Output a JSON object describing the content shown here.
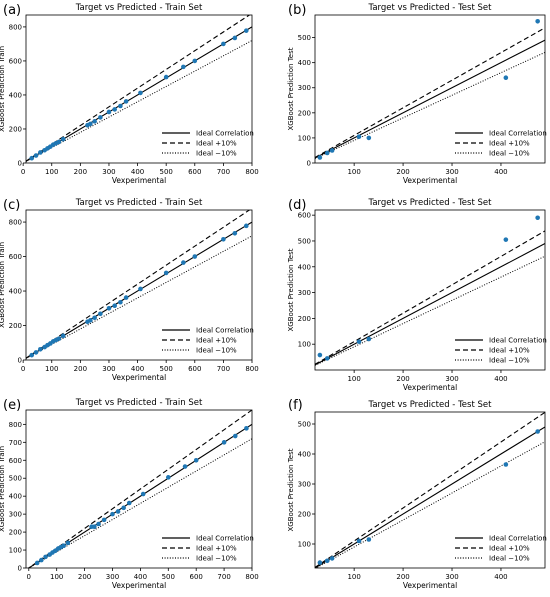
{
  "chart_data": [
    {
      "panel_label": "(a)",
      "type": "scatter",
      "title": "Target vs Predicted - Train Set",
      "xlabel": "Vexperimental",
      "ylabel": "XGBoost Prediction Train",
      "xlim": [
        10,
        800
      ],
      "ylim": [
        0,
        870
      ],
      "xticks": [
        0,
        100,
        200,
        300,
        400,
        500,
        600,
        700,
        800
      ],
      "yticks": [
        0,
        200,
        400,
        600,
        800
      ],
      "series": [
        {
          "points": [
            [
              30,
              28
            ],
            [
              45,
              44
            ],
            [
              60,
              62
            ],
            [
              75,
              75
            ],
            [
              85,
              86
            ],
            [
              95,
              96
            ],
            [
              105,
              108
            ],
            [
              115,
              116
            ],
            [
              125,
              124
            ],
            [
              140,
              140
            ],
            [
              225,
              222
            ],
            [
              235,
              230
            ],
            [
              250,
              245
            ],
            [
              270,
              268
            ],
            [
              300,
              300
            ],
            [
              320,
              315
            ],
            [
              340,
              335
            ],
            [
              360,
              362
            ],
            [
              410,
              412
            ],
            [
              500,
              505
            ],
            [
              560,
              565
            ],
            [
              600,
              600
            ],
            [
              700,
              700
            ],
            [
              740,
              735
            ],
            [
              780,
              778
            ]
          ]
        }
      ],
      "legend": {
        "position": "lower-right",
        "entries": [
          "Ideal Correlation",
          "Ideal +10%",
          "Ideal −10%"
        ]
      }
    },
    {
      "panel_label": "(b)",
      "type": "scatter",
      "title": "Target vs Predicted - Test Set",
      "xlabel": "Vexperimental",
      "ylabel": "XGBoost Prediction Test",
      "xlim": [
        20,
        490
      ],
      "ylim": [
        0,
        590
      ],
      "xticks": [
        100,
        200,
        300,
        400
      ],
      "yticks": [
        0,
        100,
        200,
        300,
        400,
        500
      ],
      "series": [
        {
          "points": [
            [
              30,
              22
            ],
            [
              45,
              40
            ],
            [
              55,
              50
            ],
            [
              110,
              105
            ],
            [
              130,
              100
            ],
            [
              410,
              340
            ],
            [
              475,
              565
            ]
          ]
        }
      ],
      "legend": {
        "position": "lower-right",
        "entries": [
          "Ideal Correlation",
          "Ideal +10%",
          "Ideal −10%"
        ]
      }
    },
    {
      "panel_label": "(c)",
      "type": "scatter",
      "title": "Target vs Predicted - Train Set",
      "xlabel": "Vexperimental",
      "ylabel": "XGBoost Prediction Train",
      "xlim": [
        10,
        800
      ],
      "ylim": [
        0,
        870
      ],
      "xticks": [
        0,
        100,
        200,
        300,
        400,
        500,
        600,
        700,
        800
      ],
      "yticks": [
        0,
        200,
        400,
        600,
        800
      ],
      "series": [
        {
          "points": [
            [
              30,
              28
            ],
            [
              45,
              44
            ],
            [
              60,
              62
            ],
            [
              75,
              75
            ],
            [
              85,
              86
            ],
            [
              95,
              96
            ],
            [
              105,
              108
            ],
            [
              115,
              116
            ],
            [
              125,
              124
            ],
            [
              140,
              140
            ],
            [
              225,
              222
            ],
            [
              235,
              230
            ],
            [
              250,
              245
            ],
            [
              270,
              268
            ],
            [
              300,
              300
            ],
            [
              320,
              315
            ],
            [
              340,
              335
            ],
            [
              360,
              362
            ],
            [
              410,
              412
            ],
            [
              500,
              505
            ],
            [
              560,
              565
            ],
            [
              600,
              600
            ],
            [
              700,
              700
            ],
            [
              740,
              735
            ],
            [
              780,
              778
            ]
          ]
        }
      ],
      "legend": {
        "position": "lower-right",
        "entries": [
          "Ideal Correlation",
          "Ideal +10%",
          "Ideal −10%"
        ]
      }
    },
    {
      "panel_label": "(d)",
      "type": "scatter",
      "title": "Target vs Predicted - Test Set",
      "xlabel": "Vexperimental",
      "ylabel": "XGBoost Prediction Test",
      "xlim": [
        20,
        490
      ],
      "ylim": [
        0,
        620
      ],
      "xticks": [
        100,
        200,
        300,
        400
      ],
      "yticks": [
        100,
        200,
        300,
        400,
        500,
        600
      ],
      "series": [
        {
          "points": [
            [
              30,
              58
            ],
            [
              45,
              45
            ],
            [
              110,
              110
            ],
            [
              130,
              120
            ],
            [
              410,
              505
            ],
            [
              475,
              590
            ]
          ]
        }
      ],
      "legend": {
        "position": "lower-right",
        "entries": [
          "Ideal Correlation",
          "Ideal +10%",
          "Ideal −10%"
        ]
      }
    },
    {
      "panel_label": "(e)",
      "type": "scatter",
      "title": "Target vs Predicted - Train Set",
      "xlabel": "Vexperimental",
      "ylabel": "XGBoost Prediction Train",
      "xlim": [
        -10,
        800
      ],
      "ylim": [
        0,
        880
      ],
      "xticks": [
        0,
        100,
        200,
        300,
        400,
        500,
        600,
        700,
        800
      ],
      "yticks": [
        0,
        100,
        200,
        300,
        400,
        500,
        600,
        700,
        800
      ],
      "series": [
        {
          "points": [
            [
              30,
              28
            ],
            [
              45,
              44
            ],
            [
              60,
              62
            ],
            [
              75,
              75
            ],
            [
              85,
              86
            ],
            [
              95,
              96
            ],
            [
              105,
              108
            ],
            [
              115,
              116
            ],
            [
              125,
              124
            ],
            [
              140,
              140
            ],
            [
              225,
              230
            ],
            [
              235,
              230
            ],
            [
              250,
              245
            ],
            [
              270,
              268
            ],
            [
              300,
              300
            ],
            [
              320,
              315
            ],
            [
              340,
              335
            ],
            [
              360,
              362
            ],
            [
              410,
              412
            ],
            [
              500,
              505
            ],
            [
              560,
              565
            ],
            [
              600,
              600
            ],
            [
              700,
              700
            ],
            [
              740,
              735
            ],
            [
              780,
              778
            ]
          ]
        }
      ],
      "legend": {
        "position": "lower-right",
        "entries": [
          "Ideal Correlation",
          "Ideal +10%",
          "Ideal −10%"
        ]
      }
    },
    {
      "panel_label": "(f)",
      "type": "scatter",
      "title": "Target vs Predicted - Test Set",
      "xlabel": "Vexperimental",
      "ylabel": "XGBoost Prediction Test",
      "xlim": [
        20,
        490
      ],
      "ylim": [
        20,
        540
      ],
      "xticks": [
        100,
        200,
        300,
        400
      ],
      "yticks": [
        100,
        200,
        300,
        400,
        500
      ],
      "series": [
        {
          "points": [
            [
              30,
              38
            ],
            [
              45,
              44
            ],
            [
              55,
              52
            ],
            [
              110,
              110
            ],
            [
              130,
              115
            ],
            [
              410,
              365
            ],
            [
              475,
              475
            ]
          ]
        }
      ],
      "legend": {
        "position": "lower-right",
        "entries": [
          "Ideal Correlation",
          "Ideal +10%",
          "Ideal −10%"
        ]
      }
    }
  ],
  "colors": {
    "points": "#1f77b4",
    "lines": "#000000",
    "axes": "#000000"
  }
}
